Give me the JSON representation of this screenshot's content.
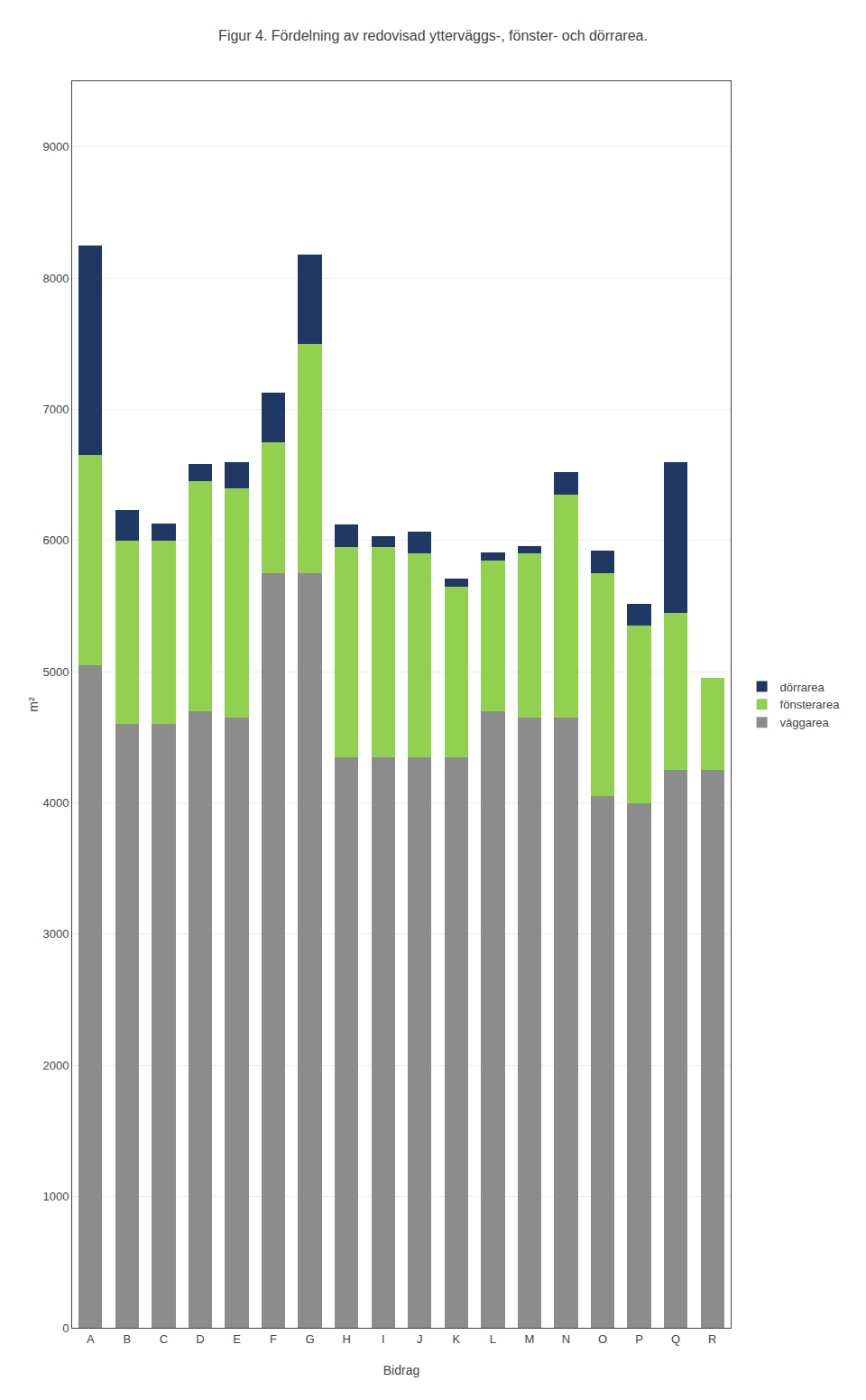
{
  "chart_data": {
    "type": "bar",
    "title": "Figur 4. Fördelning av redovisad ytterväggs-, fönster- och dörrarea.",
    "xlabel": "Bidrag",
    "ylabel": "m²",
    "categories": [
      "A",
      "B",
      "C",
      "D",
      "E",
      "F",
      "G",
      "H",
      "I",
      "J",
      "K",
      "L",
      "M",
      "N",
      "O",
      "P",
      "Q",
      "R"
    ],
    "series": [
      {
        "name": "väggarea",
        "color": "#8c8c8c",
        "values": [
          5050,
          4600,
          4600,
          4700,
          4650,
          5750,
          5750,
          4350,
          4350,
          4350,
          4350,
          4700,
          4650,
          4650,
          4050,
          4000,
          4250,
          4250
        ]
      },
      {
        "name": "fönsterarea",
        "color": "#92d050",
        "values": [
          1600,
          1400,
          1400,
          1750,
          1750,
          1000,
          1750,
          1600,
          1600,
          1550,
          1300,
          1150,
          1250,
          1700,
          1700,
          1350,
          1200,
          700
        ]
      },
      {
        "name": "dörrarea",
        "color": "#1f3864",
        "values": [
          1600,
          230,
          130,
          130,
          200,
          380,
          680,
          170,
          80,
          170,
          60,
          60,
          60,
          170,
          170,
          170,
          1150,
          0
        ]
      }
    ],
    "stacked": true,
    "ylim": [
      0,
      9500
    ],
    "yticks": [
      0,
      1000,
      2000,
      3000,
      4000,
      5000,
      6000,
      7000,
      8000,
      9000
    ],
    "grid": true,
    "legend": "right"
  }
}
